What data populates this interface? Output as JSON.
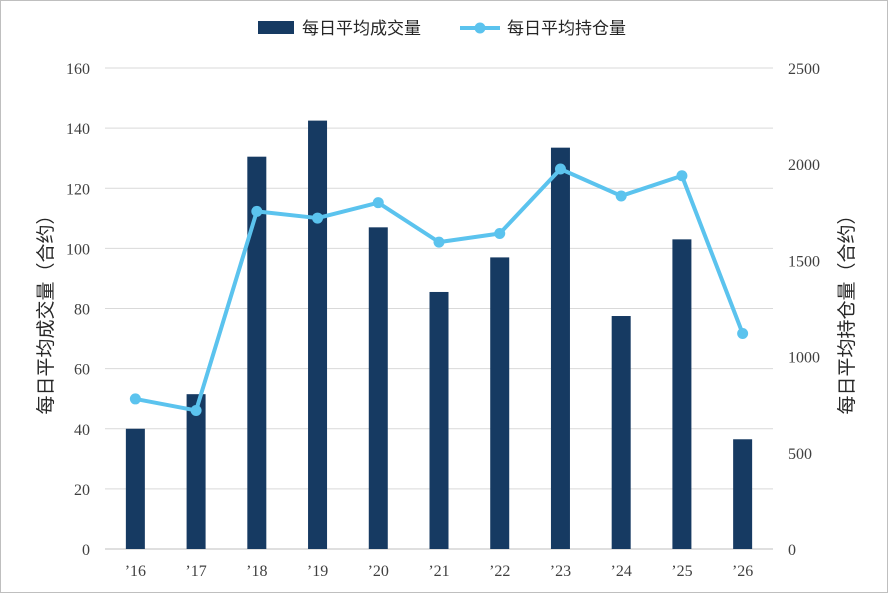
{
  "chart_data": {
    "type": "bar",
    "categories": [
      "’16",
      "’17",
      "’18",
      "’19",
      "’20",
      "’21",
      "’22",
      "’23",
      "’24",
      "’25",
      "’26"
    ],
    "series": [
      {
        "name": "每日平均成交量",
        "type": "bar",
        "axis": "left",
        "color": "#163a62",
        "values": [
          40,
          51.5,
          130.5,
          142.5,
          107,
          85.5,
          97,
          133.5,
          77.5,
          103,
          36.5
        ]
      },
      {
        "name": "每日平均持仓量",
        "type": "line",
        "axis": "right",
        "color": "#5bc3ee",
        "values": [
          780,
          720,
          1755,
          1720,
          1800,
          1595,
          1640,
          1975,
          1835,
          1940,
          1120
        ]
      }
    ],
    "ylabel_left": "每日平均成交量（合约）",
    "ylabel_right": "每日平均持仓量（合约）",
    "ylim_left": [
      0,
      160
    ],
    "ylim_right": [
      0,
      2500
    ],
    "yticks_left": [
      "0",
      "20",
      "40",
      "60",
      "80",
      "100",
      "120",
      "140",
      "160"
    ],
    "yticks_right": [
      "0",
      "500",
      "1000",
      "1500",
      "2000",
      "2500"
    ],
    "grid": true,
    "legend_position": "top-center"
  }
}
